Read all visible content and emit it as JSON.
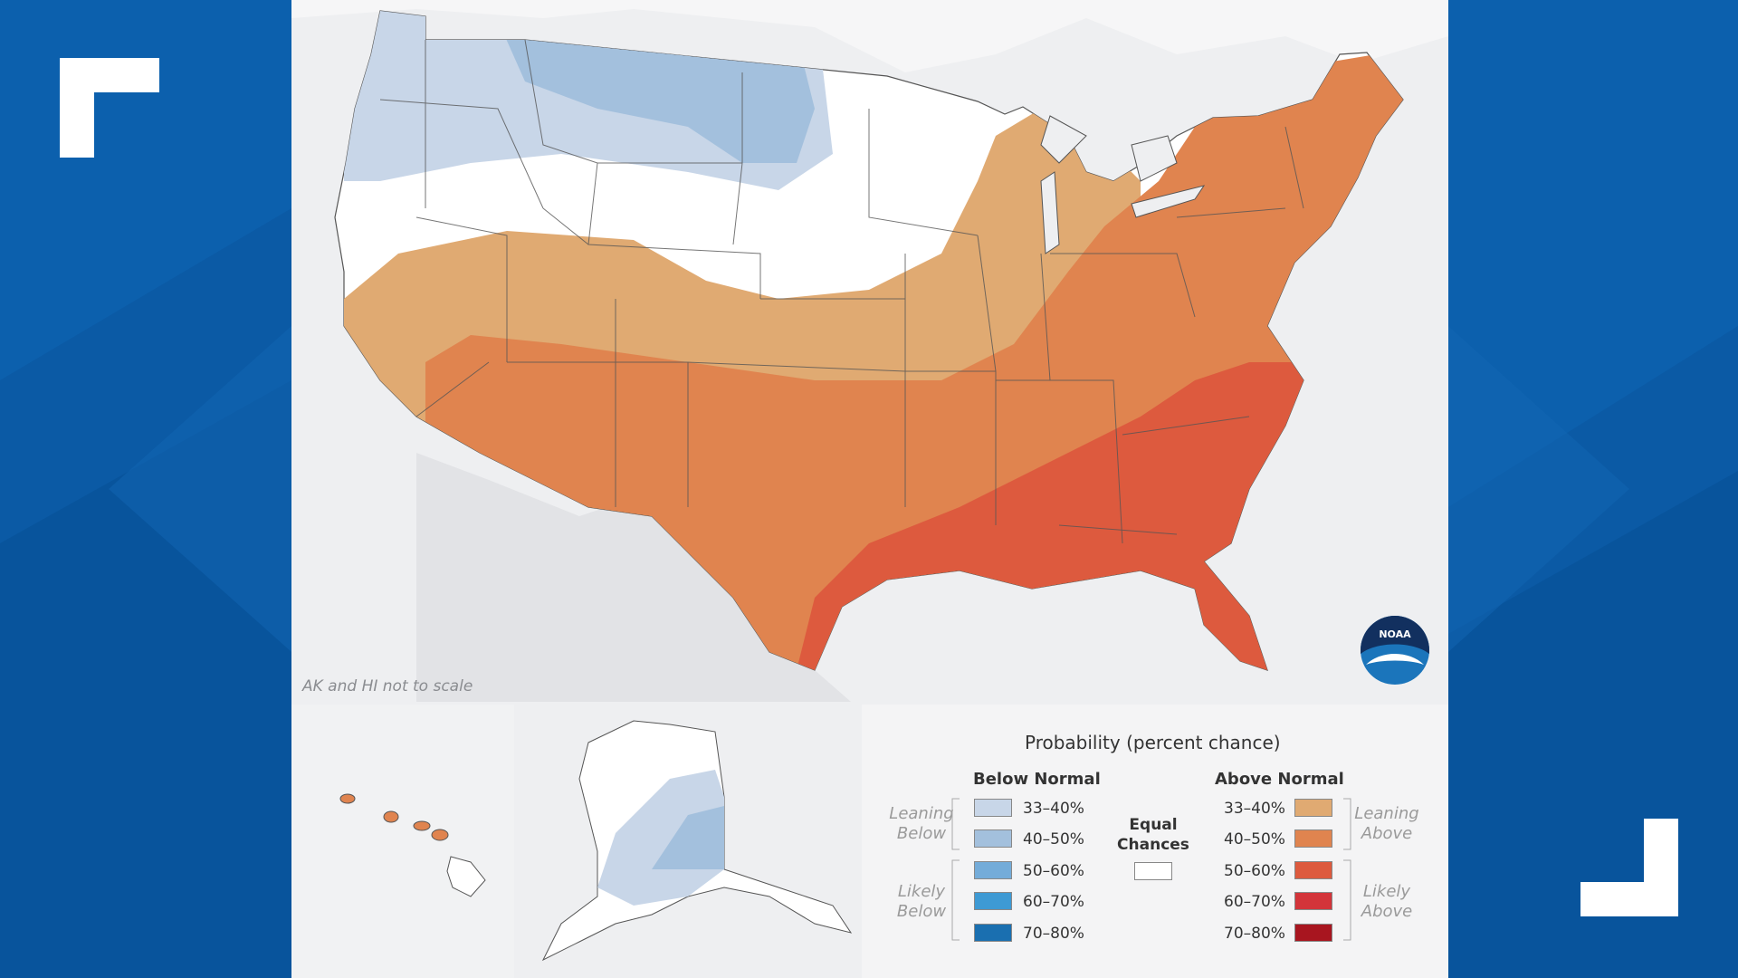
{
  "map": {
    "note": "AK and HI not to scale",
    "logo_text": "NOAA"
  },
  "legend": {
    "title": "Probability (percent chance)",
    "below_header": "Below Normal",
    "above_header": "Above Normal",
    "equal_line1": "Equal",
    "equal_line2": "Chances",
    "leaning_below_1": "Leaning",
    "leaning_below_2": "Below",
    "likely_below_1": "Likely",
    "likely_below_2": "Below",
    "leaning_above_1": "Leaning",
    "leaning_above_2": "Above",
    "likely_above_1": "Likely",
    "likely_above_2": "Above",
    "below": [
      {
        "label": "33–40%",
        "color": "#c8d6e8"
      },
      {
        "label": "40–50%",
        "color": "#a3c0dd"
      },
      {
        "label": "50–60%",
        "color": "#74acd9"
      },
      {
        "label": "60–70%",
        "color": "#3e9ad4"
      },
      {
        "label": "70–80%",
        "color": "#1a6fb0"
      }
    ],
    "above": [
      {
        "label": "33–40%",
        "color": "#e0aa72"
      },
      {
        "label": "40–50%",
        "color": "#e0844f"
      },
      {
        "label": "50–60%",
        "color": "#dd5a3e"
      },
      {
        "label": "60–70%",
        "color": "#d3343a"
      },
      {
        "label": "70–80%",
        "color": "#a8151f"
      }
    ],
    "equal_color": "#ffffff"
  }
}
